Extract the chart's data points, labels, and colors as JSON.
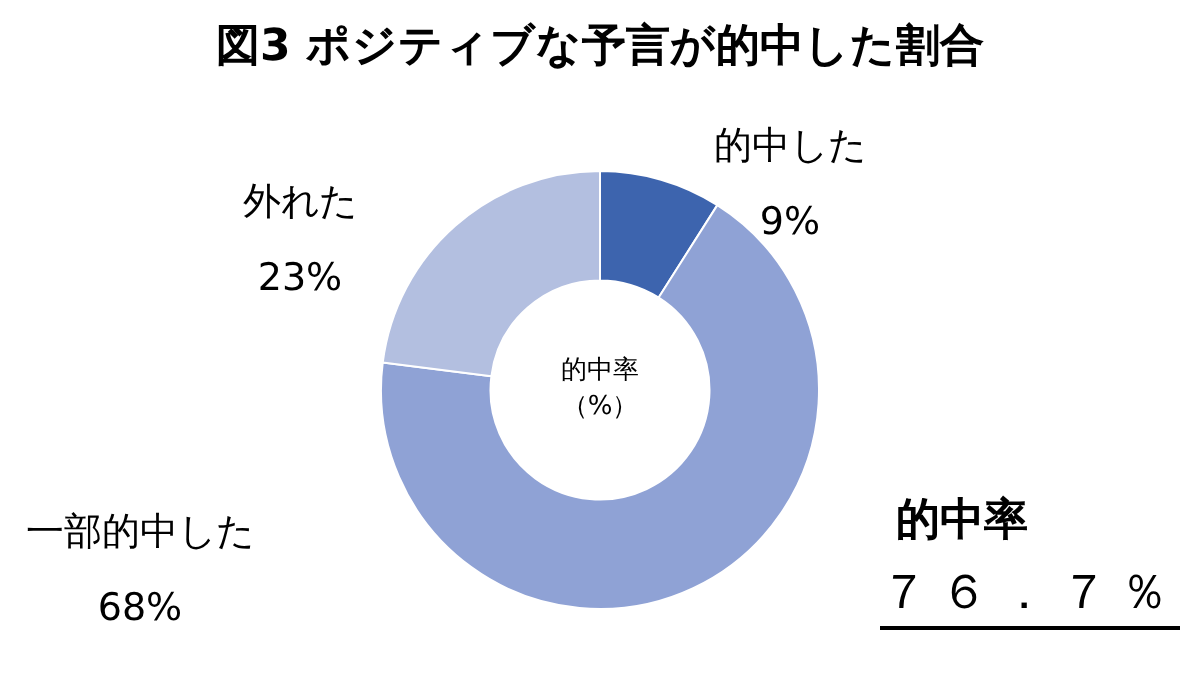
{
  "chart_data": {
    "type": "donut",
    "title": "図3 ポジティブな予言が的中した割合",
    "categories": [
      "的中した",
      "一部的中した",
      "外れた"
    ],
    "values": [
      9,
      68,
      23
    ],
    "value_labels": [
      "9%",
      "68%",
      "23%"
    ],
    "colors": [
      "#3d64ae",
      "#8fa2d5",
      "#b3bfe0"
    ],
    "annotations": [
      "的中率（%）",
      "的中率",
      "７６．７％"
    ],
    "legend": false
  }
}
